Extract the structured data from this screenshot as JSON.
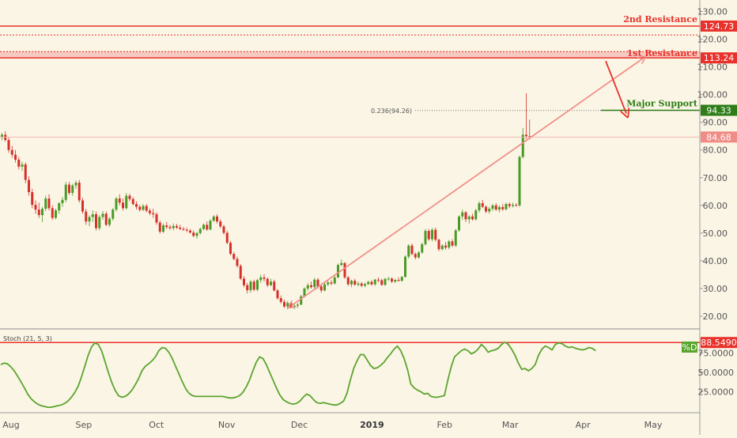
{
  "chart_data": {
    "type": "candlestick",
    "price_axis": {
      "min": 16,
      "max": 133,
      "ticks": [
        "130.00",
        "120.00",
        "110.00",
        "100.00",
        "90.00",
        "80.00",
        "70.00",
        "60.00",
        "50.00",
        "40.00",
        "30.00",
        "20.00"
      ],
      "tick_values": [
        130,
        120,
        110,
        100,
        90,
        80,
        70,
        60,
        50,
        40,
        30,
        20
      ]
    },
    "time_axis": {
      "labels": [
        "Aug",
        "Sep",
        "Oct",
        "Nov",
        "Dec",
        "2019",
        "Feb",
        "Mar",
        "Apr",
        "May"
      ],
      "year_label": "2019",
      "day_positions": [
        0,
        31,
        62,
        92,
        123,
        154,
        185,
        213,
        244,
        274
      ],
      "start_day_offset": 0
    },
    "levels": {
      "second_resistance": {
        "label": "2nd Resistance",
        "value": 124.73,
        "tag": "124.73",
        "color": "#e8322b"
      },
      "first_resistance": {
        "label": "1st Resistance",
        "value": 113.24,
        "tag": "113.24",
        "color": "#e8322b",
        "zone_top": 115.5
      },
      "dotted_upper": {
        "value": 121.5
      },
      "major_support": {
        "label": "Major Support",
        "value": 94.33,
        "tag": "94.33",
        "color": "#2e7d19"
      },
      "current_price": {
        "value": 84.68,
        "tag": "84.68",
        "color": "#f08c86"
      },
      "fib": {
        "label": "0.236(94.26)",
        "value": 94.26
      }
    },
    "candles": [
      [
        84.8,
        86.2,
        83.5,
        85.5
      ],
      [
        85.5,
        86.8,
        83.0,
        83.6
      ],
      [
        83.6,
        84.5,
        79.0,
        80.0
      ],
      [
        80.0,
        81.5,
        77.2,
        78.3
      ],
      [
        78.3,
        80.0,
        75.5,
        76.5
      ],
      [
        76.5,
        77.5,
        73.0,
        74.0
      ],
      [
        74.0,
        75.8,
        72.5,
        74.8
      ],
      [
        74.8,
        75.5,
        68.0,
        69.2
      ],
      [
        69.2,
        70.5,
        63.5,
        64.8
      ],
      [
        64.8,
        66.0,
        59.0,
        60.2
      ],
      [
        60.2,
        61.8,
        57.0,
        58.5
      ],
      [
        58.5,
        61.0,
        55.5,
        56.5
      ],
      [
        56.5,
        59.5,
        54.0,
        58.8
      ],
      [
        58.8,
        63.5,
        58.0,
        62.5
      ],
      [
        62.5,
        64.0,
        58.2,
        59.0
      ],
      [
        59.0,
        60.0,
        54.8,
        55.5
      ],
      [
        55.5,
        58.8,
        55.0,
        58.2
      ],
      [
        58.2,
        61.2,
        57.0,
        60.8
      ],
      [
        60.8,
        63.0,
        59.5,
        62.0
      ],
      [
        62.0,
        68.5,
        61.2,
        67.5
      ],
      [
        67.5,
        68.5,
        63.8,
        64.5
      ],
      [
        64.5,
        67.8,
        63.5,
        67.2
      ],
      [
        67.2,
        69.0,
        66.0,
        68.2
      ],
      [
        68.2,
        69.2,
        61.0,
        61.8
      ],
      [
        61.8,
        62.8,
        57.0,
        57.8
      ],
      [
        57.8,
        58.8,
        53.0,
        54.2
      ],
      [
        54.2,
        56.5,
        52.5,
        55.8
      ],
      [
        55.8,
        58.2,
        54.0,
        56.8
      ],
      [
        56.8,
        57.8,
        51.0,
        51.8
      ],
      [
        51.8,
        56.5,
        51.0,
        55.8
      ],
      [
        55.8,
        58.0,
        54.8,
        57.0
      ],
      [
        57.0,
        57.8,
        52.5,
        53.0
      ],
      [
        53.0,
        55.8,
        52.2,
        55.2
      ],
      [
        55.2,
        59.0,
        54.5,
        58.5
      ],
      [
        58.5,
        63.0,
        57.8,
        62.5
      ],
      [
        62.5,
        64.0,
        60.0,
        61.0
      ],
      [
        61.0,
        62.5,
        58.2,
        59.0
      ],
      [
        59.0,
        64.5,
        58.5,
        63.5
      ],
      [
        63.5,
        64.2,
        61.5,
        62.3
      ],
      [
        62.3,
        63.0,
        60.0,
        60.5
      ],
      [
        60.5,
        61.5,
        58.5,
        59.5
      ],
      [
        59.5,
        60.2,
        57.8,
        58.4
      ],
      [
        58.4,
        60.5,
        58.0,
        59.8
      ],
      [
        59.8,
        60.5,
        57.5,
        58.1
      ],
      [
        58.1,
        58.9,
        56.5,
        57.2
      ],
      [
        57.2,
        58.8,
        55.5,
        56.8
      ],
      [
        56.8,
        57.5,
        53.0,
        53.8
      ],
      [
        53.8,
        54.5,
        49.8,
        50.5
      ],
      [
        50.5,
        53.5,
        50.0,
        52.8
      ],
      [
        52.8,
        54.0,
        51.5,
        52.2
      ],
      [
        52.2,
        53.0,
        51.2,
        51.8
      ],
      [
        51.8,
        53.5,
        51.0,
        52.6
      ],
      [
        52.6,
        53.3,
        51.5,
        52.0
      ],
      [
        52.0,
        53.0,
        51.2,
        51.5
      ],
      [
        51.5,
        52.2,
        50.8,
        51.2
      ],
      [
        51.2,
        52.0,
        50.3,
        50.9
      ],
      [
        50.9,
        51.5,
        49.8,
        50.2
      ],
      [
        50.2,
        51.0,
        48.5,
        49.0
      ],
      [
        49.0,
        50.5,
        48.0,
        50.0
      ],
      [
        50.0,
        52.0,
        49.5,
        51.5
      ],
      [
        51.5,
        53.5,
        51.0,
        53.0
      ],
      [
        53.0,
        54.2,
        50.8,
        51.3
      ],
      [
        51.3,
        55.0,
        51.0,
        54.5
      ],
      [
        54.5,
        56.5,
        54.0,
        56.0
      ],
      [
        56.0,
        56.8,
        53.5,
        54.2
      ],
      [
        54.2,
        55.0,
        51.8,
        52.4
      ],
      [
        52.4,
        53.0,
        49.5,
        50.1
      ],
      [
        50.1,
        50.8,
        46.0,
        46.5
      ],
      [
        46.5,
        47.2,
        42.0,
        42.5
      ],
      [
        42.5,
        43.2,
        40.2,
        40.7
      ],
      [
        40.7,
        41.5,
        37.5,
        38.2
      ],
      [
        38.2,
        38.8,
        33.0,
        33.6
      ],
      [
        33.6,
        34.5,
        30.5,
        31.2
      ],
      [
        31.2,
        32.0,
        28.2,
        29.4
      ],
      [
        29.4,
        33.0,
        28.5,
        32.5
      ],
      [
        32.5,
        33.2,
        29.0,
        29.6
      ],
      [
        29.6,
        33.5,
        29.0,
        33.0
      ],
      [
        33.0,
        35.0,
        32.0,
        34.0
      ],
      [
        34.0,
        35.2,
        32.5,
        33.5
      ],
      [
        33.5,
        34.0,
        30.5,
        31.2
      ],
      [
        31.2,
        33.5,
        30.8,
        32.5
      ],
      [
        32.5,
        33.2,
        29.0,
        29.3
      ],
      [
        29.3,
        29.8,
        26.0,
        26.5
      ],
      [
        26.5,
        27.5,
        24.5,
        25.2
      ],
      [
        25.2,
        26.0,
        23.0,
        23.5
      ],
      [
        23.5,
        25.5,
        22.5,
        24.8
      ],
      [
        24.8,
        25.2,
        22.8,
        23.3
      ],
      [
        23.3,
        24.5,
        22.5,
        23.8
      ],
      [
        23.8,
        24.8,
        23.0,
        24.2
      ],
      [
        24.2,
        27.8,
        24.0,
        27.2
      ],
      [
        27.2,
        30.5,
        26.8,
        30.0
      ],
      [
        30.0,
        32.0,
        29.2,
        31.2
      ],
      [
        31.2,
        32.5,
        30.0,
        30.5
      ],
      [
        30.5,
        33.8,
        30.0,
        33.2
      ],
      [
        33.2,
        33.8,
        30.0,
        30.8
      ],
      [
        30.8,
        31.5,
        28.5,
        29.3
      ],
      [
        29.3,
        32.2,
        29.0,
        31.5
      ],
      [
        31.5,
        33.0,
        30.8,
        32.2
      ],
      [
        32.2,
        33.0,
        31.2,
        31.8
      ],
      [
        31.8,
        34.8,
        31.5,
        34.0
      ],
      [
        34.0,
        39.0,
        33.8,
        38.5
      ],
      [
        38.5,
        40.5,
        38.0,
        39.2
      ],
      [
        39.2,
        39.5,
        33.5,
        34.0
      ],
      [
        34.0,
        34.5,
        31.0,
        31.5
      ],
      [
        31.5,
        33.2,
        30.5,
        32.8
      ],
      [
        32.8,
        33.5,
        31.0,
        31.4
      ],
      [
        31.4,
        32.5,
        30.8,
        31.8
      ],
      [
        31.8,
        32.3,
        30.5,
        31.0
      ],
      [
        31.0,
        32.2,
        30.5,
        31.6
      ],
      [
        31.6,
        32.8,
        31.2,
        32.4
      ],
      [
        32.4,
        33.0,
        31.0,
        31.5
      ],
      [
        31.5,
        33.5,
        31.0,
        33.2
      ],
      [
        33.2,
        34.0,
        32.2,
        33.0
      ],
      [
        33.0,
        33.5,
        31.0,
        31.3
      ],
      [
        31.3,
        33.8,
        31.0,
        33.5
      ],
      [
        33.5,
        34.2,
        32.8,
        33.6
      ],
      [
        33.6,
        34.0,
        32.0,
        32.5
      ],
      [
        32.5,
        33.5,
        32.0,
        33.1
      ],
      [
        33.1,
        34.0,
        32.5,
        32.8
      ],
      [
        32.8,
        34.5,
        32.5,
        34.2
      ],
      [
        34.2,
        42.0,
        34.0,
        41.5
      ],
      [
        41.5,
        46.0,
        40.8,
        45.5
      ],
      [
        45.5,
        46.2,
        42.0,
        42.5
      ],
      [
        42.5,
        43.0,
        40.5,
        41.2
      ],
      [
        41.2,
        43.5,
        40.8,
        43.0
      ],
      [
        43.0,
        46.5,
        42.5,
        46.0
      ],
      [
        46.0,
        51.5,
        45.5,
        50.8
      ],
      [
        50.8,
        51.5,
        47.2,
        47.8
      ],
      [
        47.8,
        51.8,
        47.0,
        51.2
      ],
      [
        51.2,
        52.0,
        47.0,
        47.6
      ],
      [
        47.6,
        48.0,
        43.5,
        44.2
      ],
      [
        44.2,
        46.0,
        43.8,
        45.5
      ],
      [
        45.5,
        46.8,
        44.0,
        44.8
      ],
      [
        44.8,
        47.5,
        44.2,
        47.0
      ],
      [
        47.0,
        47.8,
        45.0,
        45.5
      ],
      [
        45.5,
        51.5,
        45.0,
        51.0
      ],
      [
        51.0,
        56.5,
        50.5,
        56.0
      ],
      [
        56.0,
        58.5,
        54.8,
        57.5
      ],
      [
        57.5,
        58.0,
        54.0,
        55.0
      ],
      [
        55.0,
        56.5,
        53.5,
        56.0
      ],
      [
        56.0,
        57.0,
        54.5,
        55.0
      ],
      [
        55.0,
        58.8,
        54.5,
        58.2
      ],
      [
        58.2,
        61.5,
        57.5,
        60.8
      ],
      [
        60.8,
        62.0,
        59.0,
        59.5
      ],
      [
        59.5,
        60.0,
        57.2,
        57.8
      ],
      [
        57.8,
        59.5,
        57.0,
        58.8
      ],
      [
        58.8,
        60.5,
        58.0,
        60.0
      ],
      [
        60.0,
        60.8,
        58.0,
        58.5
      ],
      [
        58.5,
        60.0,
        57.5,
        59.4
      ],
      [
        59.4,
        60.5,
        58.0,
        58.6
      ],
      [
        58.6,
        61.0,
        58.2,
        60.5
      ],
      [
        60.5,
        61.0,
        59.0,
        59.8
      ],
      [
        59.8,
        61.0,
        59.3,
        60.2
      ],
      [
        60.2,
        60.8,
        59.5,
        60.0
      ],
      [
        60.0,
        78.0,
        59.5,
        77.5
      ],
      [
        77.5,
        88.0,
        77.0,
        85.5
      ],
      [
        85.5,
        100.5,
        84.0,
        85.0
      ],
      [
        85.0,
        91.0,
        83.8,
        84.68
      ]
    ],
    "oscillator": {
      "title": "Stoch (21, 5, 3)",
      "series_name": "%D",
      "series_tag": "%D",
      "ticks": [
        "75.0000",
        "50.0000",
        "25.0000"
      ],
      "tick_values": [
        75,
        50,
        25
      ],
      "min": 0,
      "max": 100,
      "level": {
        "value": 88.549,
        "tag": "88.5490",
        "color": "#e8322b"
      },
      "values": [
        60,
        62,
        61,
        57,
        52,
        45,
        38,
        30,
        22,
        16,
        12,
        9,
        7,
        6,
        5,
        5,
        6,
        7,
        8,
        10,
        13,
        18,
        24,
        32,
        44,
        58,
        72,
        83,
        88,
        86,
        78,
        64,
        50,
        37,
        27,
        20,
        18,
        19,
        22,
        27,
        34,
        42,
        52,
        58,
        61,
        65,
        70,
        78,
        82,
        81,
        76,
        68,
        58,
        48,
        38,
        29,
        23,
        20,
        19,
        19,
        19,
        19,
        19,
        19,
        19,
        19,
        19,
        18,
        17,
        17,
        18,
        20,
        24,
        31,
        40,
        52,
        63,
        70,
        68,
        60,
        50,
        40,
        30,
        21,
        15,
        12,
        10,
        9,
        10,
        13,
        18,
        22,
        20,
        15,
        11,
        10,
        11,
        10,
        9,
        8,
        8,
        10,
        13,
        23,
        40,
        55,
        65,
        73,
        73,
        66,
        59,
        55,
        56,
        59,
        63,
        69,
        74,
        80,
        84,
        78,
        68,
        54,
        35,
        30,
        27,
        25,
        22,
        23,
        19,
        18,
        18,
        19,
        20,
        40,
        57,
        70,
        74,
        78,
        80,
        78,
        74,
        76,
        80,
        86,
        82,
        76,
        78,
        79,
        81,
        86,
        89,
        86,
        80,
        72,
        62,
        54,
        55,
        52,
        55,
        60,
        72,
        80,
        84,
        82,
        79,
        86,
        88,
        87,
        84,
        82,
        83,
        81,
        80,
        79,
        80,
        82,
        81,
        78
      ]
    },
    "arrows": {
      "pink_from": {
        "index": 85,
        "value": 21.5
      },
      "pink_to": {
        "index": 191,
        "value": 113.0
      }
    }
  }
}
